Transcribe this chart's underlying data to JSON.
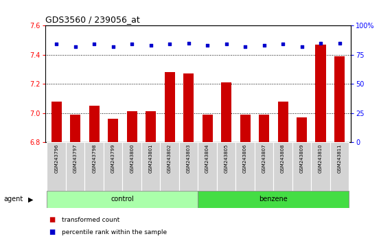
{
  "title": "GDS3560 / 239056_at",
  "samples": [
    "GSM243796",
    "GSM243797",
    "GSM243798",
    "GSM243799",
    "GSM243800",
    "GSM243801",
    "GSM243802",
    "GSM243803",
    "GSM243804",
    "GSM243805",
    "GSM243806",
    "GSM243807",
    "GSM243808",
    "GSM243809",
    "GSM243810",
    "GSM243811"
  ],
  "transformed_count": [
    7.08,
    6.99,
    7.05,
    6.96,
    7.01,
    7.01,
    7.28,
    7.27,
    6.99,
    7.21,
    6.99,
    6.99,
    7.08,
    6.97,
    7.47,
    7.39
  ],
  "percentile_rank": [
    84,
    82,
    84,
    82,
    84,
    83,
    84,
    85,
    83,
    84,
    82,
    83,
    84,
    82,
    85,
    85
  ],
  "groups": [
    "control",
    "control",
    "control",
    "control",
    "control",
    "control",
    "control",
    "control",
    "benzene",
    "benzene",
    "benzene",
    "benzene",
    "benzene",
    "benzene",
    "benzene",
    "benzene"
  ],
  "ylim_left": [
    6.8,
    7.6
  ],
  "ylim_right": [
    0,
    100
  ],
  "yticks_left": [
    6.8,
    7.0,
    7.2,
    7.4,
    7.6
  ],
  "yticks_right": [
    0,
    25,
    50,
    75,
    100
  ],
  "bar_color": "#cc0000",
  "dot_color": "#0000cc",
  "control_color": "#aaffaa",
  "benzene_color": "#44dd44",
  "plot_bg_color": "#ffffff",
  "legend_items": [
    "transformed count",
    "percentile rank within the sample"
  ]
}
